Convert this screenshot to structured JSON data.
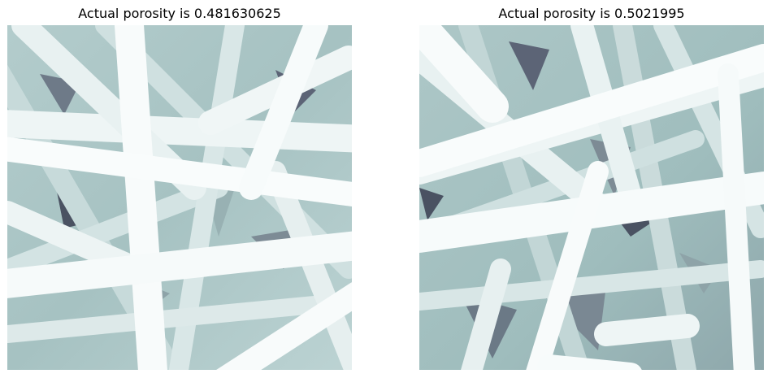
{
  "figure": {
    "panels": [
      {
        "title": "Actual porosity is 0.481630625",
        "image": "fiber-mat-micrograph-left",
        "porosity": 0.481630625
      },
      {
        "title": "Actual porosity is 0.5021995",
        "image": "fiber-mat-micrograph-right",
        "porosity": 0.5021995
      }
    ],
    "colormap": {
      "dark": "#3e3e5a",
      "mid": "#9fbdbd",
      "light": "#f8fbfb"
    }
  }
}
